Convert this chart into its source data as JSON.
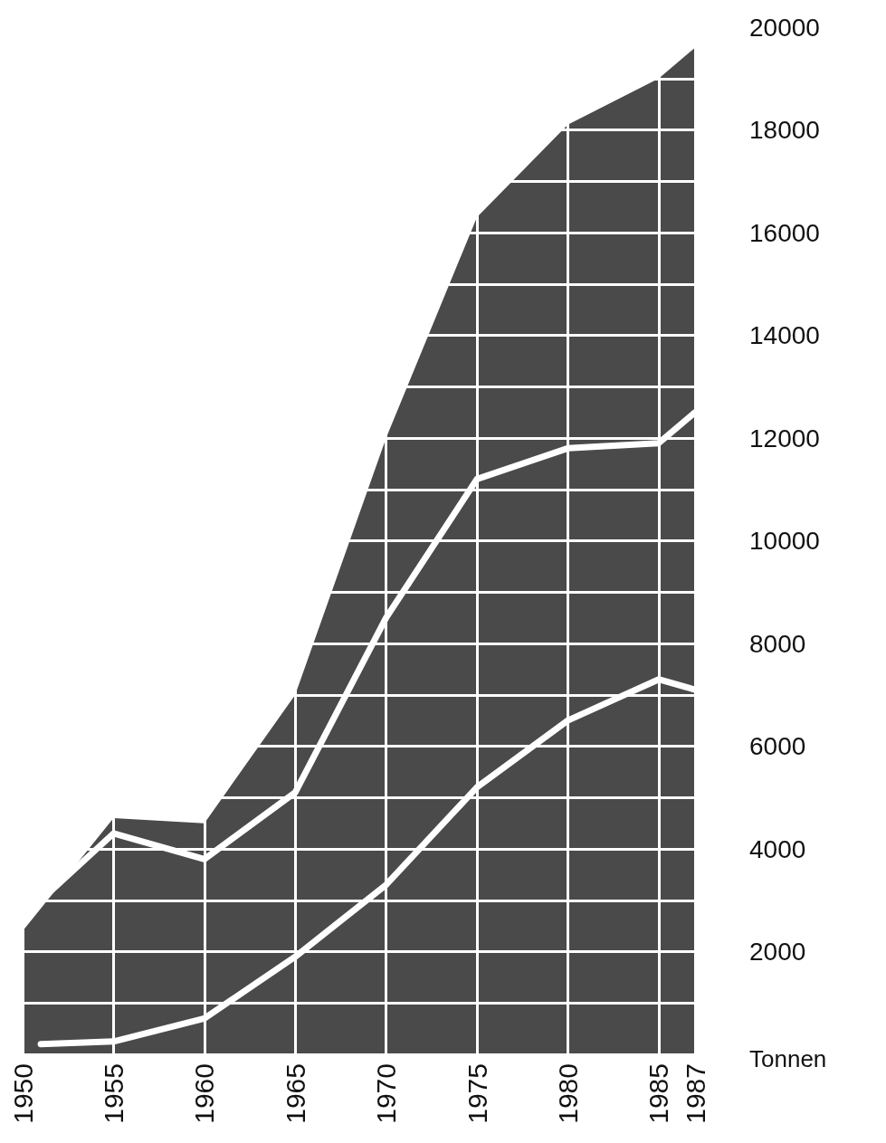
{
  "chart_data": {
    "type": "line",
    "ylabel": "Tonnen",
    "xlim": [
      1950,
      1987
    ],
    "xticks": [
      1950,
      1955,
      1960,
      1965,
      1970,
      1975,
      1980,
      1985,
      1987
    ],
    "ylim": [
      0,
      20000
    ],
    "yticks": [
      {
        "value": 0,
        "label": null
      },
      {
        "value": 1000,
        "label": null
      },
      2000,
      {
        "value": 3000,
        "label": null
      },
      4000,
      {
        "value": 5000,
        "label": null
      },
      6000,
      {
        "value": 7000,
        "label": null
      },
      8000,
      {
        "value": 9000,
        "label": null
      },
      10000,
      {
        "value": 11000,
        "label": null
      },
      12000,
      {
        "value": 13000,
        "label": null
      },
      14000,
      {
        "value": 15000,
        "label": null
      },
      16000,
      {
        "value": 17000,
        "label": null
      },
      18000,
      {
        "value": 19000,
        "label": null
      },
      20000
    ],
    "grid": true,
    "marker": "none",
    "line_style": "solid",
    "series": [
      {
        "type": "area",
        "color": "#4a4a4a",
        "x": [
          1950,
          1955,
          1960,
          1965,
          1970,
          1975,
          1980,
          1985,
          1987
        ],
        "values": [
          2400,
          4600,
          4500,
          7000,
          12000,
          16300,
          18100,
          19000,
          19600
        ]
      },
      {
        "color": "#ffffff",
        "x": [
          1951,
          1955,
          1960,
          1965,
          1970,
          1975,
          1980,
          1985,
          1987
        ],
        "values": [
          3000,
          4300,
          3800,
          5100,
          8500,
          11200,
          11800,
          11900,
          12500
        ]
      },
      {
        "color": "#ffffff",
        "x": [
          1951,
          1955,
          1960,
          1965,
          1970,
          1975,
          1980,
          1985,
          1987
        ],
        "values": [
          200,
          250,
          700,
          1900,
          3300,
          5200,
          6500,
          7300,
          7100
        ]
      }
    ]
  }
}
